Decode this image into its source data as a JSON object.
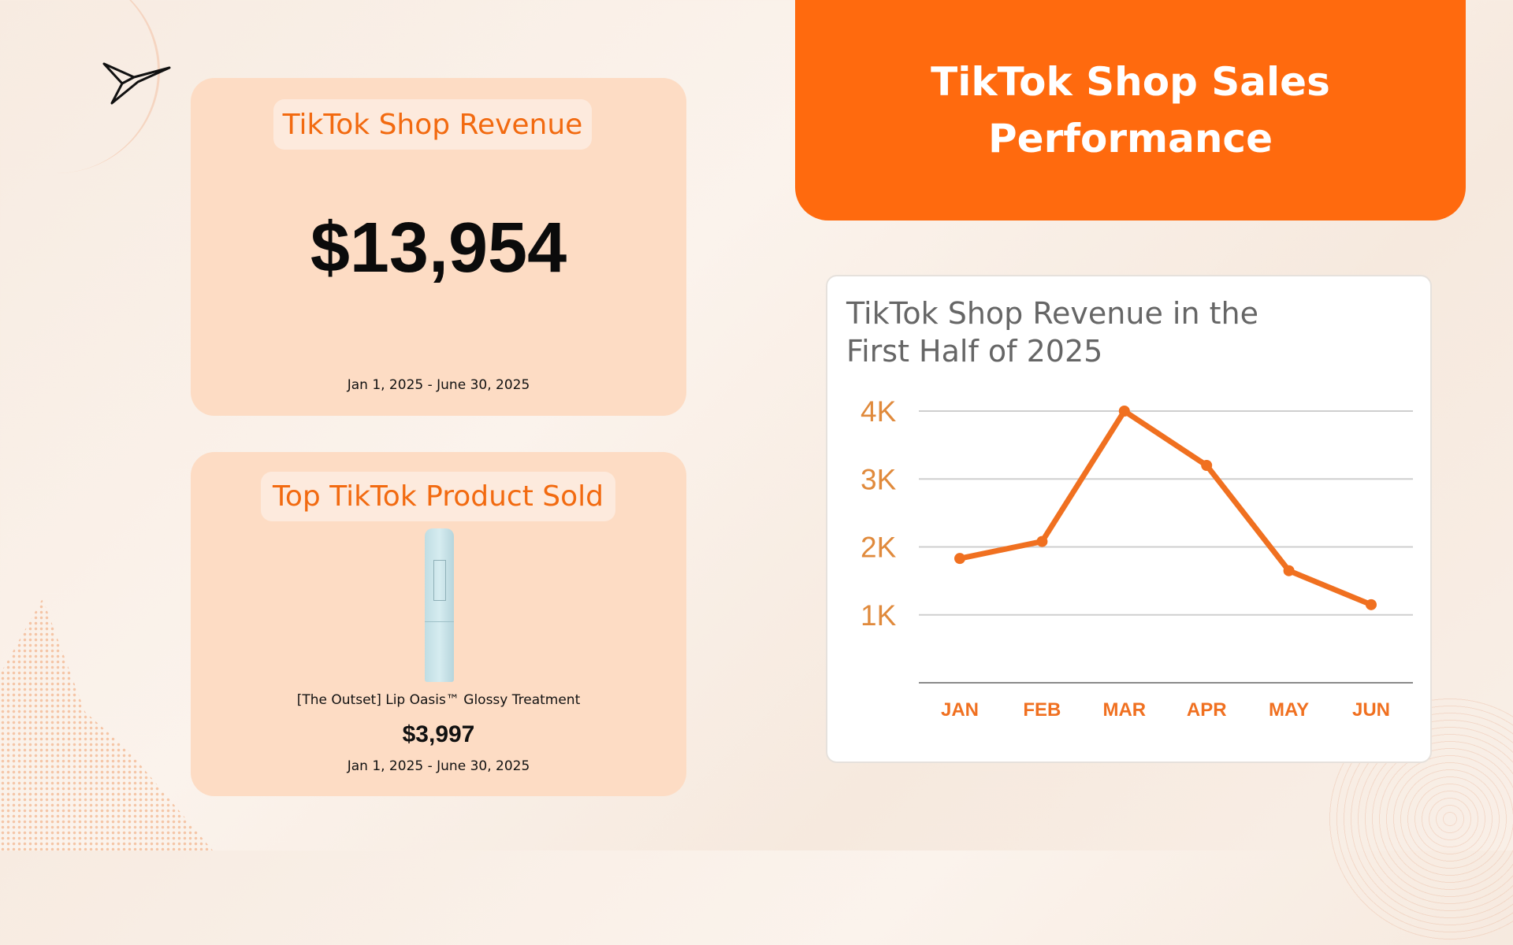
{
  "header": {
    "title_line1": "TikTok Shop Sales",
    "title_line2": "Performance"
  },
  "revenue_card": {
    "label": "TikTok Shop Revenue",
    "value": "$13,954",
    "date_range": "Jan 1, 2025 - June 30, 2025"
  },
  "product_card": {
    "label": "Top TikTok Product Sold",
    "product_name": "[The Outset] Lip Oasis™ Glossy Treatment",
    "value": "$3,997",
    "date_range": "Jan 1, 2025 - June 30, 2025"
  },
  "colors": {
    "accent": "#ff6a0e",
    "card": "#fddcc4",
    "line": "#f07020",
    "axis_label": "#e08a3c"
  },
  "chart_data": {
    "type": "line",
    "title_line1": "TikTok Shop Revenue in the",
    "title_line2": "First Half of 2025",
    "categories": [
      "JAN",
      "FEB",
      "MAR",
      "APR",
      "MAY",
      "JUN"
    ],
    "values": [
      1830,
      2080,
      4000,
      3200,
      1650,
      1150
    ],
    "yticks": [
      {
        "v": 1000,
        "label": "1K"
      },
      {
        "v": 2000,
        "label": "2K"
      },
      {
        "v": 3000,
        "label": "3K"
      },
      {
        "v": 4000,
        "label": "4K"
      }
    ],
    "ylim": [
      0,
      4000
    ],
    "grid": true
  }
}
